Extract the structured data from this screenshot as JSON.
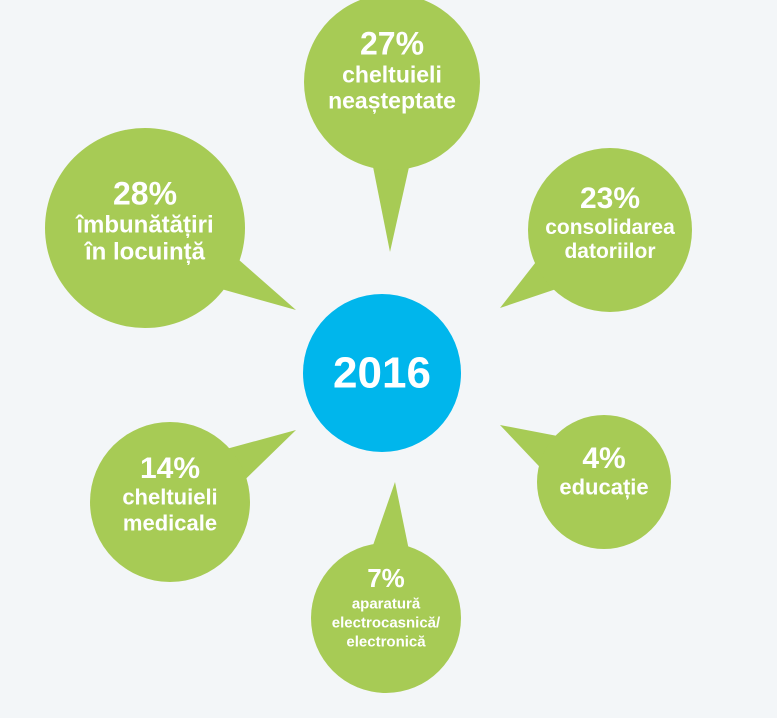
{
  "center": {
    "label": "2016"
  },
  "nodes": [
    {
      "value": "27%",
      "label_lines": [
        "cheltuieli",
        "neașteptate"
      ]
    },
    {
      "value": "28%",
      "label_lines": [
        "îmbunătățiri",
        "în locuință"
      ]
    },
    {
      "value": "23%",
      "label_lines": [
        "consolidarea",
        "datoriilor"
      ]
    },
    {
      "value": "14%",
      "label_lines": [
        "cheltuieli",
        "medicale"
      ]
    },
    {
      "value": "4%",
      "label_lines": [
        "educație"
      ]
    },
    {
      "value": "7%",
      "label_lines": [
        "aparatură",
        "electrocasnică/",
        "electronică"
      ]
    }
  ]
}
